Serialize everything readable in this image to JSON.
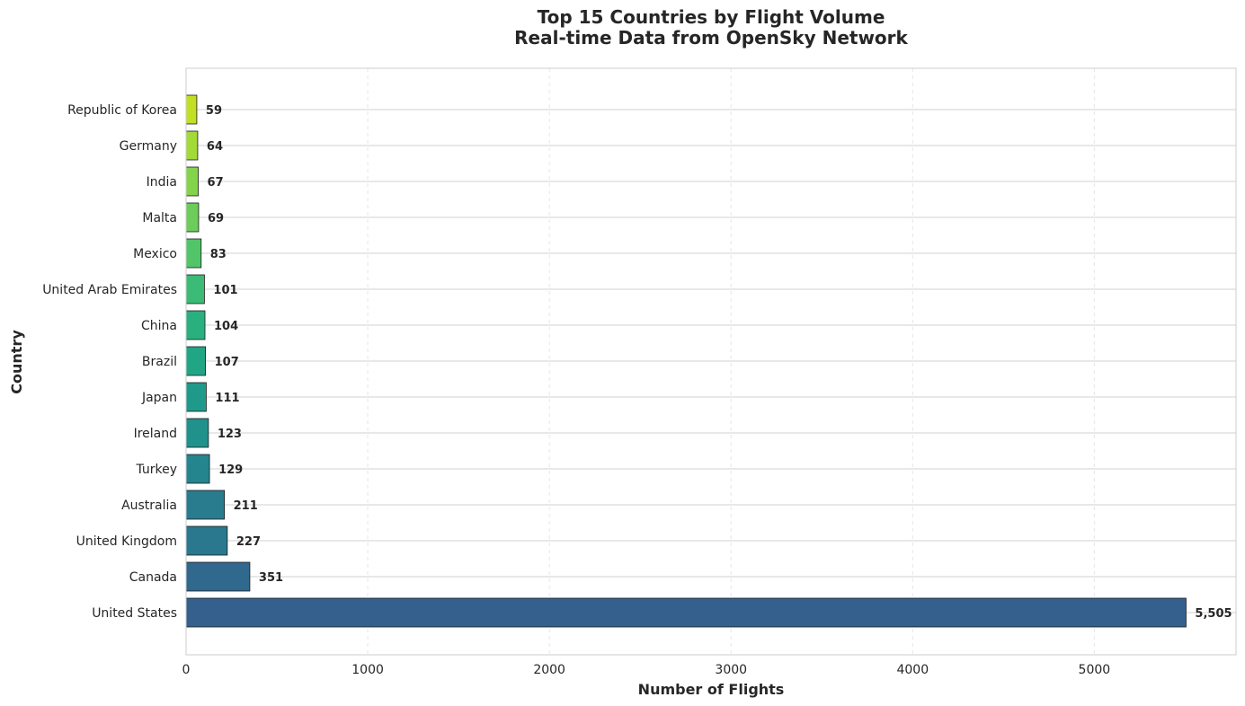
{
  "chart_data": {
    "type": "bar",
    "orientation": "horizontal",
    "title_line1": "Top 15 Countries by Flight Volume",
    "title_line2": "Real-time Data from OpenSky Network",
    "xlabel": "Number of Flights",
    "ylabel": "Country",
    "xlim": [
      0,
      5780
    ],
    "xticks": [
      0,
      1000,
      2000,
      3000,
      4000,
      5000
    ],
    "xtick_labels": [
      "0",
      "1000",
      "2000",
      "3000",
      "4000",
      "5000"
    ],
    "grid": true,
    "categories": [
      "United States",
      "Canada",
      "United Kingdom",
      "Australia",
      "Turkey",
      "Ireland",
      "Japan",
      "Brazil",
      "China",
      "United Arab Emirates",
      "Mexico",
      "Malta",
      "India",
      "Germany",
      "Republic of Korea"
    ],
    "values": [
      5505,
      351,
      227,
      211,
      129,
      123,
      111,
      107,
      104,
      101,
      83,
      69,
      67,
      64,
      59
    ],
    "value_labels": [
      "5,505",
      "351",
      "227",
      "211",
      "129",
      "123",
      "111",
      "107",
      "104",
      "101",
      "83",
      "69",
      "67",
      "64",
      "59"
    ],
    "colors": [
      "#355f8d",
      "#30688e",
      "#2a788e",
      "#297b8e",
      "#25858e",
      "#21918c",
      "#1f9a8a",
      "#21a685",
      "#2ab07f",
      "#3bbb75",
      "#52c569",
      "#6ccd5a",
      "#84d44b",
      "#a2da37",
      "#c2df23"
    ]
  }
}
